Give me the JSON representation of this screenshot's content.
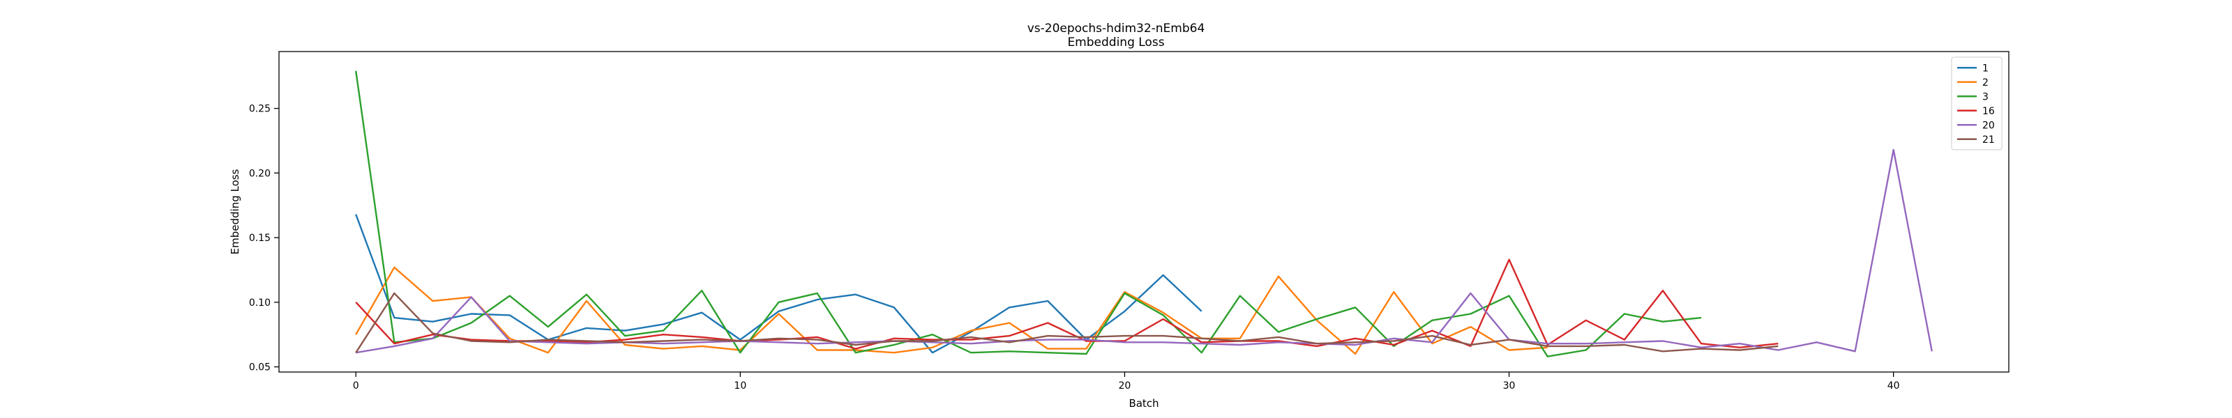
{
  "chart_data": {
    "type": "line",
    "title": "vs-20epochs-hdim32-nEmb64",
    "subtitle": "Embedding Loss",
    "xlabel": "Batch",
    "ylabel": "Embedding Loss",
    "xlim": [
      -2,
      43
    ],
    "ylim": [
      0.046,
      0.294
    ],
    "xticks": [
      0,
      10,
      20,
      30,
      40
    ],
    "yticks": [
      0.05,
      0.1,
      0.15,
      0.2,
      0.25
    ],
    "ytick_labels": [
      "0.05",
      "0.10",
      "0.15",
      "0.20",
      "0.25"
    ],
    "grid": false,
    "legend_position": "top-right",
    "series": [
      {
        "name": "1",
        "color": "#1f77b4",
        "values": [
          0.168,
          0.088,
          0.085,
          0.091,
          0.09,
          0.071,
          0.08,
          0.078,
          0.083,
          0.092,
          0.071,
          0.093,
          0.102,
          0.106,
          0.096,
          0.061,
          0.077,
          0.096,
          0.101,
          0.071,
          0.093,
          0.121,
          0.093
        ]
      },
      {
        "name": "2",
        "color": "#ff7f0e",
        "values": [
          0.075,
          0.127,
          0.101,
          0.104,
          0.072,
          0.061,
          0.101,
          0.067,
          0.064,
          0.066,
          0.063,
          0.091,
          0.063,
          0.063,
          0.061,
          0.065,
          0.078,
          0.084,
          0.064,
          0.064,
          0.108,
          0.092,
          0.072,
          0.072,
          0.12,
          0.086,
          0.06,
          0.108,
          0.068,
          0.081,
          0.063,
          0.065
        ]
      },
      {
        "name": "3",
        "color": "#2ca02c",
        "values": [
          0.279,
          0.069,
          0.072,
          0.084,
          0.105,
          0.081,
          0.106,
          0.074,
          0.078,
          0.109,
          0.061,
          0.1,
          0.107,
          0.061,
          0.067,
          0.075,
          0.061,
          0.062,
          0.061,
          0.06,
          0.107,
          0.09,
          0.061,
          0.105,
          0.077,
          0.087,
          0.096,
          0.066,
          0.086,
          0.091,
          0.105,
          0.058,
          0.063,
          0.091,
          0.085,
          0.088
        ]
      },
      {
        "name": "16",
        "color": "#d62728",
        "values": [
          0.1,
          0.068,
          0.075,
          0.071,
          0.07,
          0.07,
          0.069,
          0.071,
          0.075,
          0.073,
          0.07,
          0.071,
          0.073,
          0.064,
          0.072,
          0.071,
          0.071,
          0.074,
          0.084,
          0.07,
          0.07,
          0.087,
          0.069,
          0.07,
          0.07,
          0.066,
          0.072,
          0.067,
          0.078,
          0.066,
          0.133,
          0.067,
          0.086,
          0.071,
          0.109,
          0.068,
          0.065,
          0.068
        ]
      },
      {
        "name": "20",
        "color": "#9467bd",
        "values": [
          0.061,
          0.066,
          0.072,
          0.104,
          0.07,
          0.069,
          0.068,
          0.069,
          0.068,
          0.069,
          0.07,
          0.069,
          0.068,
          0.069,
          0.07,
          0.069,
          0.068,
          0.07,
          0.071,
          0.071,
          0.069,
          0.069,
          0.068,
          0.067,
          0.069,
          0.068,
          0.067,
          0.072,
          0.069,
          0.107,
          0.071,
          0.068,
          0.068,
          0.069,
          0.07,
          0.065,
          0.068,
          0.063,
          0.069,
          0.062,
          0.218,
          0.062
        ]
      },
      {
        "name": "21",
        "color": "#8c564b",
        "values": [
          0.061,
          0.107,
          0.076,
          0.07,
          0.069,
          0.071,
          0.07,
          0.069,
          0.07,
          0.071,
          0.07,
          0.072,
          0.071,
          0.067,
          0.07,
          0.07,
          0.073,
          0.069,
          0.074,
          0.073,
          0.074,
          0.074,
          0.072,
          0.07,
          0.073,
          0.068,
          0.069,
          0.07,
          0.074,
          0.067,
          0.071,
          0.066,
          0.066,
          0.067,
          0.062,
          0.064,
          0.063,
          0.066
        ]
      }
    ]
  }
}
